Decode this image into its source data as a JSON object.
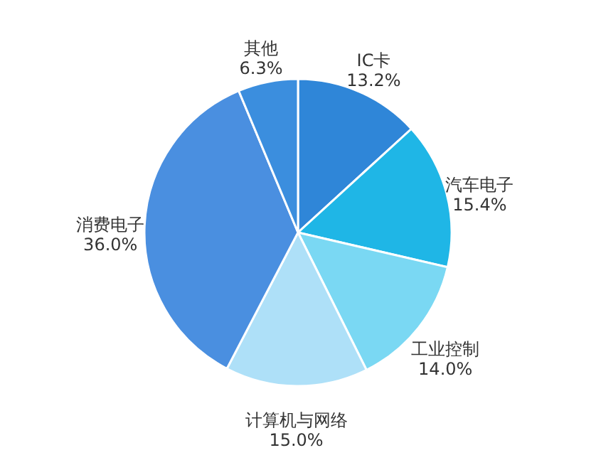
{
  "chart_data": {
    "type": "pie",
    "categories": [
      "IC卡",
      "汽车电子",
      "工业控制",
      "计算机与网络",
      "消费电子",
      "其他"
    ],
    "values": [
      13.2,
      15.4,
      14.0,
      15.0,
      36.0,
      6.3
    ],
    "value_labels": [
      "13.2%",
      "15.4%",
      "14.0%",
      "15.0%",
      "36.0%",
      "6.3%"
    ],
    "colors": [
      "#2f86d8",
      "#1fb6e6",
      "#7ad8f3",
      "#aee0f8",
      "#4a8fe0",
      "#3b8ede"
    ]
  }
}
